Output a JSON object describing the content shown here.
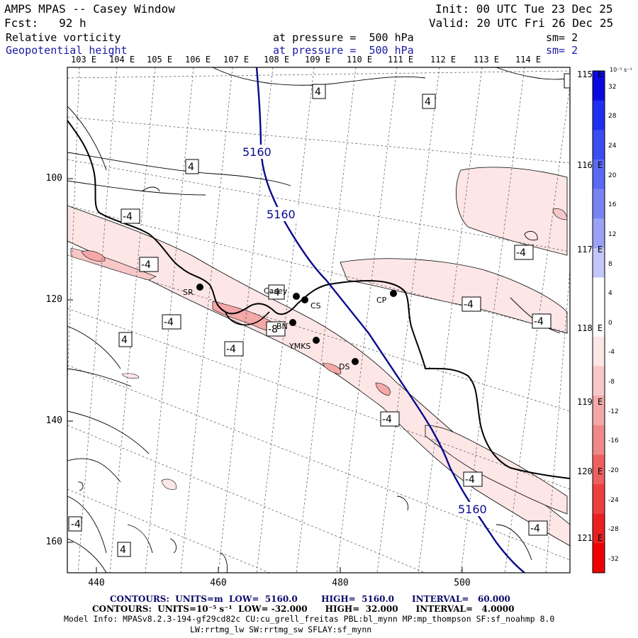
{
  "header": {
    "title": "AMPS MPAS -- Casey Window",
    "init": "Init: 00 UTC Tue 23 Dec 25",
    "fcst": "Fcst:   92 h",
    "valid": "Valid: 20 UTC Fri 26 Dec 25",
    "field1_name": "Relative vorticity",
    "field1_level": "at pressure =  500 hPa",
    "field1_sm": "sm= 2",
    "field2_name": "Geopotential height",
    "field2_level": "at pressure =  500 hPa",
    "field2_sm": "sm= 2"
  },
  "top_lon_labels": [
    "103 E",
    "104 E",
    "105 E",
    "106 E",
    "107 E",
    "108 E",
    "109 E",
    "110 E",
    "111 E",
    "112 E",
    "113 E",
    "114 E"
  ],
  "right_lon_labels": [
    "115 E",
    "116 E",
    "117 E",
    "118 E",
    "119 E",
    "120 E",
    "121 E"
  ],
  "y_axis_ticks": [
    "100",
    "120",
    "140",
    "160"
  ],
  "x_axis_ticks": [
    "440",
    "460",
    "480",
    "500"
  ],
  "colorbar": {
    "units": "10⁻⁵ s⁻¹",
    "ticks": [
      "32",
      "28",
      "24",
      "20",
      "16",
      "12",
      "8",
      "4",
      "0",
      "-4",
      "-8",
      "-12",
      "-16",
      "-20",
      "-24",
      "-28",
      "-32"
    ],
    "colors": [
      "#0a0ae0",
      "#1f2ff0",
      "#3c4cf0",
      "#5a6af2",
      "#7884f4",
      "#9aa2f6",
      "#c2c6f8",
      "#ffffff",
      "#ffffff",
      "#fde6e6",
      "#f8c8c8",
      "#f4a8a8",
      "#f08888",
      "#ee6060",
      "#ec4040",
      "#ea2020",
      "#f00000"
    ]
  },
  "stations": [
    {
      "name": "SR"
    },
    {
      "name": "Casey"
    },
    {
      "name": "CS"
    },
    {
      "name": "CP"
    },
    {
      "name": "BN"
    },
    {
      "name": "YMKS"
    },
    {
      "name": "DS"
    }
  ],
  "contour_labels": {
    "height": [
      "5160",
      "5160",
      "5160"
    ],
    "vorticity": [
      "4",
      "4",
      "4",
      "-4",
      "-4",
      "-4",
      "-4",
      "-8",
      "-4",
      "-4",
      "-4",
      "-4",
      "-4",
      "-4",
      "-4",
      "4",
      "-4",
      "4",
      "4",
      "-4"
    ]
  },
  "footer": {
    "line1": "CONTOURS:  UNITS=m  LOW=  5160.0        HIGH=  5160.0      INTERVAL=   60.000",
    "line2": "CONTOURS:  UNITS=10⁻⁵ s⁻¹  LOW= -32.000      HIGH=  32.000      INTERVAL=   4.0000",
    "line3": "Model Info: MPASv8.2.3-194-gf29cd82c CU:cu_grell_freitas PBL:bl_mynn MP:mp_thompson SF:sf_noahmp 8.0",
    "line4": "LW:rrtmg_lw SW:rrtmg_sw SFLAY:sf_mynn"
  },
  "colors": {
    "height_contour": "#0a0a8c",
    "header_blue": "#1a1aa6",
    "footer_navy": "#0a0a6a"
  }
}
